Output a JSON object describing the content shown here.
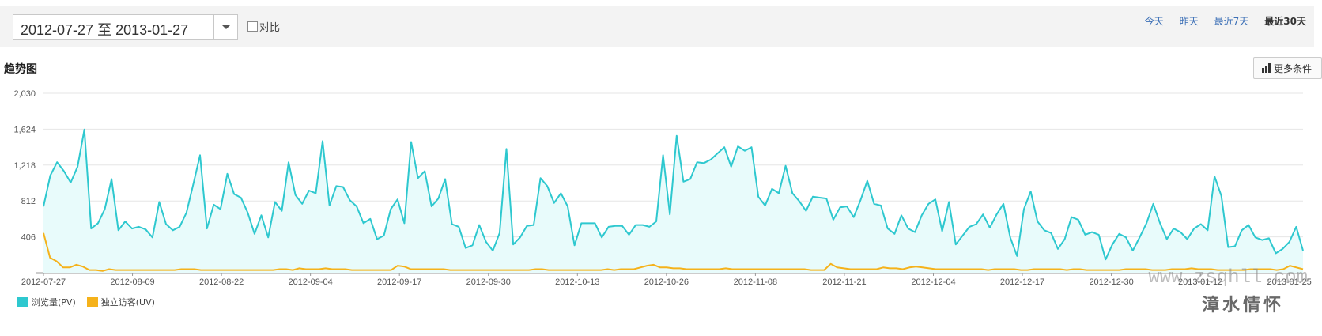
{
  "toolbar": {
    "date_range": "2012-07-27 至 2013-01-27",
    "compare_label": "对比",
    "range_links": [
      "今天",
      "昨天",
      "最近7天",
      "最近30天"
    ],
    "active_range": "最近30天"
  },
  "section": {
    "title": "趋势图",
    "more_label": "更多条件"
  },
  "watermark": {
    "url": "www.zsqhll.com",
    "text": "漳水情怀"
  },
  "colors": {
    "pv": "#2ec8cf",
    "uv": "#f5b21b",
    "link": "#3b6fb6"
  },
  "chart_data": {
    "type": "area",
    "y_ticks": [
      "406",
      "812",
      "1,218",
      "1,624",
      "2,030"
    ],
    "ylim": [
      0,
      2030
    ],
    "x_tick_labels": [
      "2012-07-27",
      "2012-08-09",
      "2012-08-22",
      "2012-09-04",
      "2012-09-17",
      "2012-09-30",
      "2012-10-13",
      "2012-10-26",
      "2012-11-08",
      "2012-11-21",
      "2012-12-04",
      "2012-12-17",
      "2012-12-30",
      "2013-01-12",
      "2013-01-25"
    ],
    "x_start": "2012-07-27",
    "x_end": "2013-01-27",
    "grid": true,
    "legend_position": "bottom-left",
    "series": [
      {
        "name": "浏览量(PV)",
        "color": "#2ec8cf",
        "values": [
          750,
          1100,
          1250,
          1150,
          1020,
          1200,
          1620,
          500,
          560,
          720,
          1060,
          480,
          580,
          500,
          520,
          490,
          400,
          800,
          550,
          480,
          520,
          680,
          1000,
          1330,
          500,
          770,
          720,
          1120,
          890,
          850,
          680,
          440,
          650,
          400,
          800,
          700,
          1250,
          880,
          780,
          930,
          900,
          1490,
          760,
          980,
          970,
          820,
          750,
          560,
          610,
          380,
          420,
          720,
          830,
          560,
          1480,
          1070,
          1150,
          750,
          840,
          1060,
          550,
          520,
          280,
          310,
          540,
          350,
          250,
          450,
          1400,
          320,
          400,
          530,
          540,
          1070,
          980,
          790,
          900,
          750,
          310,
          560,
          560,
          560,
          400,
          520,
          530,
          530,
          430,
          540,
          540,
          520,
          580,
          1330,
          660,
          1550,
          1030,
          1060,
          1250,
          1240,
          1280,
          1350,
          1420,
          1200,
          1430,
          1380,
          1420,
          860,
          760,
          950,
          900,
          1210,
          900,
          810,
          700,
          860,
          850,
          840,
          600,
          740,
          750,
          630,
          820,
          1040,
          780,
          760,
          500,
          440,
          650,
          500,
          460,
          650,
          780,
          830,
          470,
          800,
          320,
          420,
          520,
          550,
          660,
          510,
          660,
          780,
          400,
          190,
          720,
          920,
          580,
          480,
          450,
          270,
          380,
          630,
          600,
          430,
          460,
          430,
          150,
          320,
          440,
          400,
          250,
          400,
          560,
          780,
          560,
          380,
          500,
          460,
          380,
          500,
          550,
          480,
          1090,
          870,
          290,
          300,
          480,
          540,
          400,
          370,
          390,
          220,
          270,
          350,
          520,
          250
        ]
      },
      {
        "name": "独立访客(UV)",
        "color": "#f5b21b",
        "values": [
          450,
          170,
          130,
          60,
          60,
          90,
          70,
          30,
          30,
          20,
          40,
          30,
          30,
          30,
          30,
          30,
          30,
          30,
          30,
          30,
          30,
          40,
          40,
          40,
          30,
          30,
          30,
          30,
          30,
          30,
          30,
          30,
          30,
          30,
          30,
          30,
          40,
          40,
          30,
          50,
          40,
          40,
          40,
          50,
          40,
          40,
          40,
          30,
          30,
          30,
          30,
          30,
          30,
          30,
          80,
          70,
          40,
          40,
          40,
          40,
          40,
          40,
          30,
          30,
          30,
          30,
          30,
          30,
          30,
          30,
          30,
          30,
          30,
          30,
          30,
          40,
          40,
          30,
          30,
          30,
          30,
          30,
          30,
          30,
          30,
          30,
          40,
          30,
          40,
          40,
          40,
          60,
          80,
          90,
          60,
          60,
          50,
          50,
          40,
          40,
          40,
          40,
          40,
          40,
          50,
          40,
          40,
          40,
          40,
          40,
          40,
          40,
          40,
          40,
          40,
          40,
          40,
          30,
          30,
          30,
          100,
          60,
          50,
          40,
          40,
          40,
          40,
          40,
          60,
          50,
          50,
          40,
          60,
          70,
          60,
          50,
          40,
          40,
          40,
          40,
          40,
          40,
          40,
          40,
          30,
          40,
          40,
          40,
          40,
          30,
          30,
          40,
          40,
          40,
          40,
          40,
          30,
          40,
          40,
          30,
          30,
          30,
          30,
          30,
          30,
          40,
          40,
          40,
          40,
          30,
          30,
          30,
          40,
          40,
          40,
          50,
          40,
          40,
          40,
          30,
          30,
          30,
          30,
          30,
          40,
          40,
          40,
          40,
          30,
          40,
          80,
          60,
          40
        ]
      }
    ]
  }
}
